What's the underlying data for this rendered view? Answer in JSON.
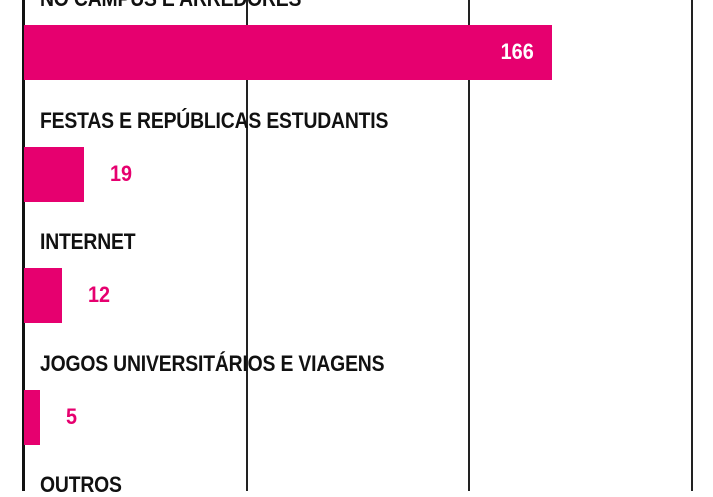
{
  "chart_data": {
    "type": "bar",
    "orientation": "horizontal",
    "categories": [
      "NO CAMPUS E ARREDORES",
      "FESTAS E REPÚBLICAS ESTUDANTIS",
      "INTERNET",
      "JOGOS UNIVERSITÁRIOS E VIAGENS",
      "OUTROS"
    ],
    "values": [
      166,
      19,
      12,
      5,
      null
    ],
    "xlim": [
      0,
      210
    ],
    "grid": true,
    "bar_color": "#e6006f",
    "label_inside_color": "#ffffff",
    "label_outside_color": "#e6006f"
  }
}
